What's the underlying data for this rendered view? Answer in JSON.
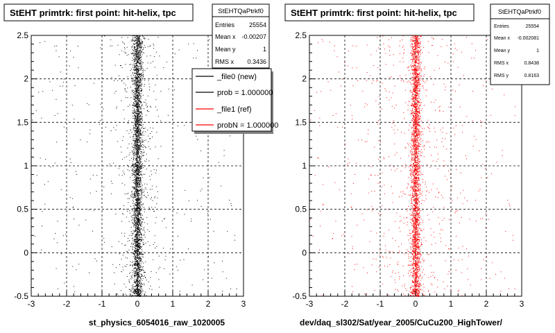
{
  "panels": [
    {
      "title": "StEHT primtrk: first point: hit-helix, tpc",
      "xlabel": "st_physics_6054016_raw_1020005",
      "stats": {
        "name": "StEHTQaPtrkf0",
        "rows": [
          {
            "label": "Entries",
            "value": "25554"
          },
          {
            "label": "Mean x",
            "value": "-0.00207"
          },
          {
            "label": "Mean y",
            "value": "1"
          },
          {
            "label": "RMS x",
            "value": "0.3436"
          }
        ]
      },
      "legend": [
        {
          "label": "_file0 (new)",
          "color": "#000000"
        },
        {
          "label": "prob = 1.000000",
          "color": "#000000"
        },
        {
          "label": "_file1 (ref)",
          "color": "#ff0000"
        },
        {
          "label": "probN = 1.000000",
          "color": "#ff0000"
        }
      ]
    },
    {
      "title": "StEHT primtrk: first point: hit-helix, tpc",
      "xlabel": "dev/daq_sl302/Sat/year_2005/CuCu200_HighTower/",
      "stats": {
        "name": "StEHTQaPtrkf0",
        "rows": [
          {
            "label": "Entries",
            "value": "25554"
          },
          {
            "label": "Mean x",
            "value": "-0.002081"
          },
          {
            "label": "Mean y",
            "value": "1"
          },
          {
            "label": "RMS x",
            "value": "0.8438"
          },
          {
            "label": "RMS y",
            "value": "0.8163"
          }
        ]
      }
    }
  ],
  "chart_data": [
    {
      "type": "scatter",
      "title": "StEHT primtrk: first point: hit-helix, tpc",
      "xlabel": "st_physics_6054016_raw_1020005",
      "ylabel": "",
      "xlim": [
        -3,
        3
      ],
      "ylim": [
        -0.5,
        2.5
      ],
      "xticks": [
        "-3",
        "-2",
        "-1",
        "0",
        "1",
        "2",
        "3"
      ],
      "yticks": [
        "-0.5",
        "0",
        "0.5",
        "1",
        "1.5",
        "2",
        "2.5"
      ],
      "grid": true,
      "series": [
        {
          "name": "_file0 (new)",
          "color": "#000000",
          "entries": 25554,
          "mean_x": -0.00207,
          "rms_x": 0.3436,
          "core_halfwidth": 0.12
        }
      ]
    },
    {
      "type": "scatter",
      "title": "StEHT primtrk: first point: hit-helix, tpc",
      "xlabel": "dev/daq_sl302/Sat/year_2005/CuCu200_HighTower/",
      "ylabel": "",
      "xlim": [
        -3,
        3
      ],
      "ylim": [
        -0.5,
        2.5
      ],
      "xticks": [
        "-3",
        "-2",
        "-1",
        "0",
        "1",
        "2",
        "3"
      ],
      "yticks": [
        "-0.5",
        "0",
        "0.5",
        "1",
        "1.5",
        "2",
        "2.5"
      ],
      "grid": true,
      "series": [
        {
          "name": "_file1 (ref)",
          "color": "#ff0000",
          "entries": 25554,
          "mean_x": -0.002081,
          "rms_x": 0.8438,
          "core_halfwidth": 0.12
        }
      ]
    }
  ]
}
